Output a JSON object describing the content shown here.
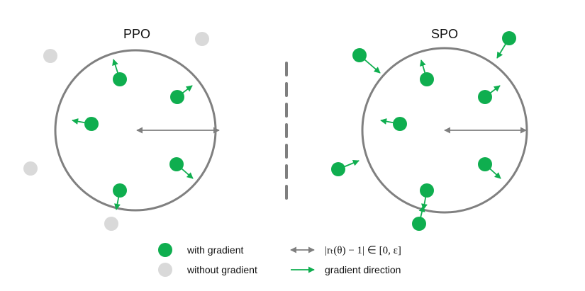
{
  "colors": {
    "green": "#0fae4f",
    "gray_dot": "#d9d9d9",
    "circle_stroke": "#808080",
    "arrow_gray": "#7f7f7f",
    "divider": "#7f7f7f"
  },
  "panels": {
    "ppo": {
      "title": "PPO"
    },
    "spo": {
      "title": "SPO"
    }
  },
  "legend": {
    "with_gradient": "with gradient",
    "without_gradient": "without gradient",
    "ratio_range": "|rₜ(θ) − 1| ∈ [0, ε]",
    "gradient_direction": "gradient direction"
  }
}
